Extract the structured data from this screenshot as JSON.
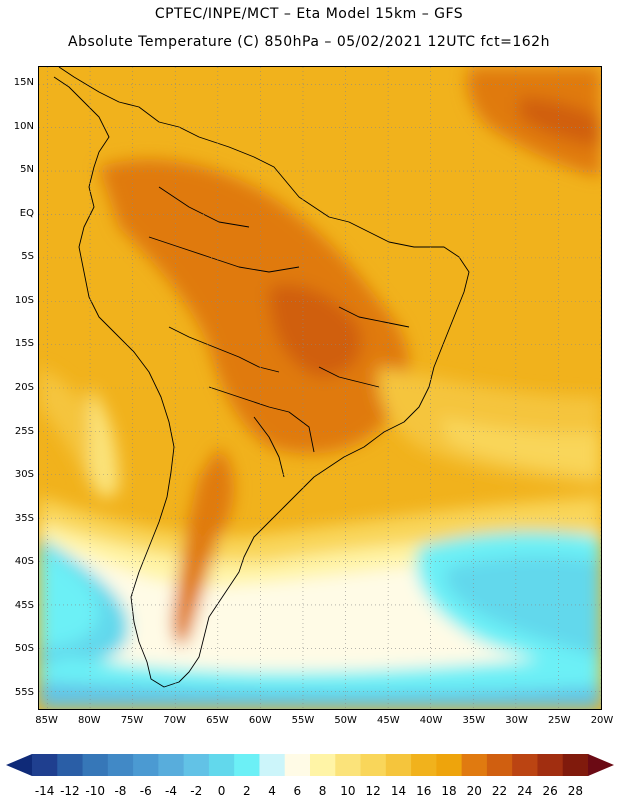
{
  "header": {
    "line1": "CPTEC/INPE/MCT –  Eta Model 15km – GFS",
    "line2": "Absolute Temperature (C) 850hPa – 05/02/2021 12UTC fct=162h"
  },
  "axes": {
    "lat_labels": [
      "15N",
      "10N",
      "5N",
      "EQ",
      "5S",
      "10S",
      "15S",
      "20S",
      "25S",
      "30S",
      "35S",
      "40S",
      "45S",
      "50S",
      "55S"
    ],
    "lat_values": [
      15,
      10,
      5,
      0,
      -5,
      -10,
      -15,
      -20,
      -25,
      -30,
      -35,
      -40,
      -45,
      -50,
      -55
    ],
    "lon_labels": [
      "85W",
      "80W",
      "75W",
      "70W",
      "65W",
      "60W",
      "55W",
      "50W",
      "45W",
      "40W",
      "35W",
      "30W",
      "25W",
      "20W"
    ],
    "lon_values": [
      -85,
      -80,
      -75,
      -70,
      -65,
      -60,
      -55,
      -50,
      -45,
      -40,
      -35,
      -30,
      -25,
      -20
    ],
    "lat_range": [
      -57,
      17
    ],
    "lon_range": [
      -86,
      -20
    ],
    "grid": "dotted"
  },
  "colorbar": {
    "labels": [
      "-14",
      "-12",
      "-10",
      "-8",
      "-6",
      "-4",
      "-2",
      "0",
      "2",
      "4",
      "6",
      "8",
      "10",
      "12",
      "14",
      "16",
      "18",
      "20",
      "22",
      "24",
      "26",
      "28"
    ],
    "colors": [
      "#1f3f8f",
      "#2a5ea6",
      "#3677b8",
      "#4189c6",
      "#4b9ad2",
      "#58addc",
      "#62c2e6",
      "#62d8ec",
      "#6cf0f6",
      "#ccf5fa",
      "#fffbe6",
      "#fff4a6",
      "#fbe37a",
      "#f9d65a",
      "#f5c53c",
      "#f1b21c",
      "#eea40c",
      "#e07a10",
      "#d05f10",
      "#bb4412",
      "#a12e10",
      "#801a0c"
    ]
  }
}
